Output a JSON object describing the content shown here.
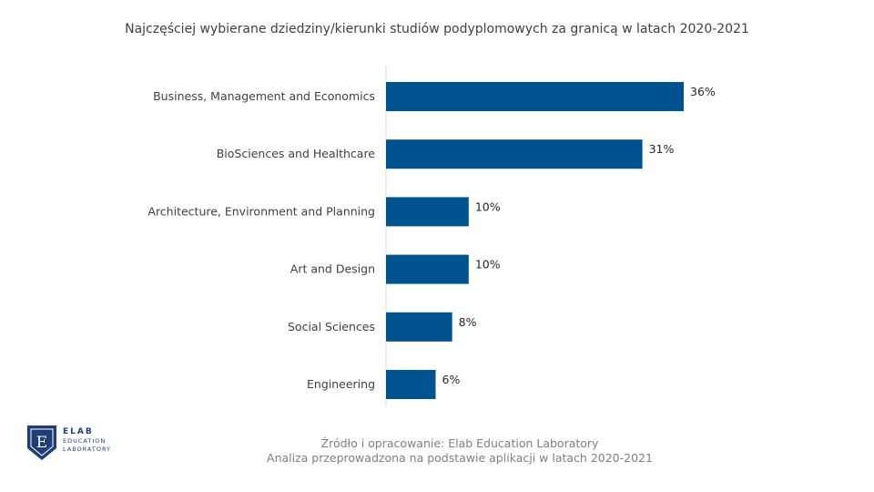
{
  "chart_data": {
    "type": "bar",
    "orientation": "horizontal",
    "title": "Najczęściej wybierane dziedziny/kierunki studiów podyplomowych za granicą w latach 2020-2021",
    "categories": [
      "Business, Management and Economics",
      "BioSciences and Healthcare",
      "Architecture, Environment and Planning",
      "Art and Design",
      "Social Sciences",
      "Engineering"
    ],
    "values": [
      36,
      31,
      10,
      10,
      8,
      6
    ],
    "value_labels": [
      "36%",
      "31%",
      "10%",
      "10%",
      "8%",
      "6%"
    ],
    "xlim": [
      0,
      40
    ],
    "grid": false,
    "legend": "none",
    "bar_color": "#00538f"
  },
  "source": {
    "line1": "Źródło i opracowanie: Elab Education Laboratory",
    "line2": "Analiza przeprowadzona na podstawie aplikacji w latach 2020-2021"
  },
  "logo": {
    "mark": "E",
    "name": "ELAB",
    "sub1": "EDUCATION",
    "sub2": "LABORATORY",
    "color": "#1f3f74",
    "icon": "elab-shield-logo"
  }
}
